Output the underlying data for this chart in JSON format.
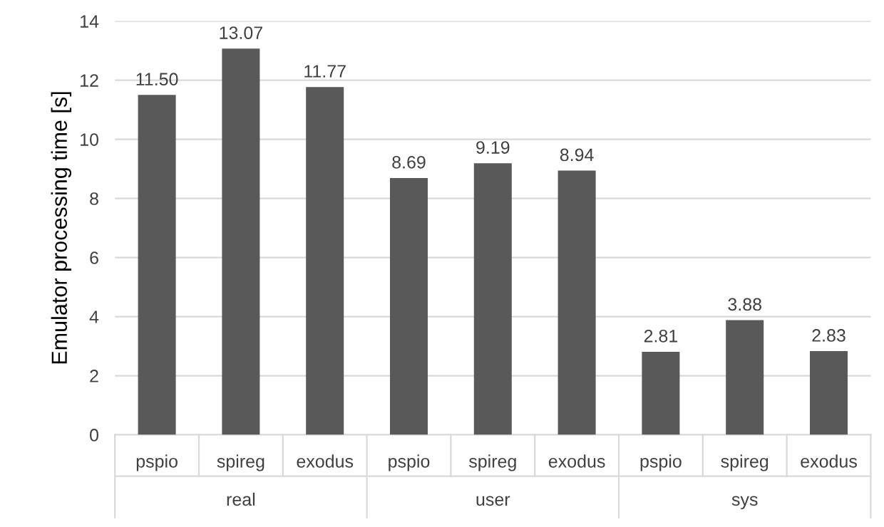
{
  "chart_data": {
    "type": "bar",
    "ylabel": "Emulator processing time [s]",
    "categories": [
      "pspio",
      "spireg",
      "exodus",
      "pspio",
      "spireg",
      "exodus",
      "pspio",
      "spireg",
      "exodus"
    ],
    "values": [
      11.5,
      13.07,
      11.77,
      8.69,
      9.19,
      8.94,
      2.81,
      3.88,
      2.83
    ],
    "value_labels": [
      "11.50",
      "13.07",
      "11.77",
      "8.69",
      "9.19",
      "8.94",
      "2.81",
      "3.88",
      "2.83"
    ],
    "color": "#595959",
    "annotations": [
      "real",
      "user",
      "sys"
    ],
    "ylim": [
      0,
      14
    ],
    "yticks": [
      0,
      2,
      4,
      6,
      8,
      10,
      12,
      14
    ],
    "grid": "y"
  }
}
